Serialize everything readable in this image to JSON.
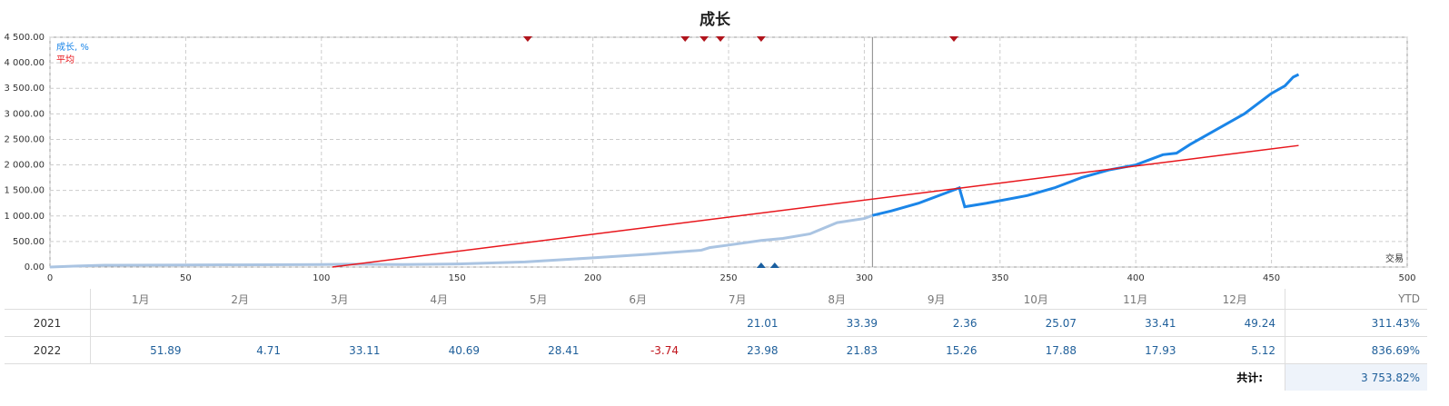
{
  "chart_data": {
    "type": "line",
    "title": "成长",
    "x_label": "交易",
    "xlim": [
      0,
      500
    ],
    "xticks": [
      0,
      50,
      100,
      150,
      200,
      250,
      300,
      350,
      400,
      450,
      500
    ],
    "ylim": [
      0,
      4500
    ],
    "yticks": [
      {
        "value": 0,
        "label": "0.00"
      },
      {
        "value": 500,
        "label": "500.00"
      },
      {
        "value": 1000,
        "label": "1 000.00"
      },
      {
        "value": 1500,
        "label": "1 500.00"
      },
      {
        "value": 2000,
        "label": "2 000.00"
      },
      {
        "value": 2500,
        "label": "2 500.00"
      },
      {
        "value": 3000,
        "label": "3 000.00"
      },
      {
        "value": 3500,
        "label": "3 500.00"
      },
      {
        "value": 4000,
        "label": "4 000.00"
      },
      {
        "value": 4500,
        "label": "4 500.00"
      }
    ],
    "grid": true,
    "cursor_x": 303,
    "past_color": "#aac4e2",
    "series": [
      {
        "name": "成长, %",
        "color": "#1a85e8",
        "x": [
          0,
          10,
          20,
          50,
          100,
          110,
          130,
          150,
          175,
          200,
          220,
          240,
          243,
          250,
          262,
          270,
          280,
          290,
          300,
          303,
          310,
          320,
          330,
          335,
          337,
          345,
          360,
          370,
          380,
          390,
          400,
          410,
          415,
          420,
          430,
          440,
          450,
          455,
          458,
          460
        ],
        "values": [
          0,
          20,
          35,
          40,
          50,
          55,
          50,
          60,
          100,
          180,
          250,
          330,
          380,
          430,
          520,
          560,
          650,
          870,
          950,
          1010,
          1100,
          1250,
          1450,
          1550,
          1180,
          1250,
          1400,
          1550,
          1750,
          1900,
          2000,
          2200,
          2230,
          2400,
          2700,
          3000,
          3400,
          3550,
          3720,
          3770
        ]
      },
      {
        "name": "平均",
        "color": "#e8161c",
        "x": [
          104,
          460
        ],
        "values": [
          0,
          2380
        ]
      }
    ],
    "top_markers_x": [
      176,
      234,
      241,
      247,
      262,
      333
    ],
    "top_marker_color": "#b0141c",
    "bottom_markers_x": [
      262,
      267
    ],
    "bottom_marker_color": "#1a5fa0"
  },
  "table": {
    "header": [
      "1月",
      "2月",
      "3月",
      "4月",
      "5月",
      "6月",
      "7月",
      "8月",
      "9月",
      "10月",
      "11月",
      "12月",
      "YTD"
    ],
    "rows": [
      {
        "year": "2021",
        "values": [
          null,
          null,
          null,
          null,
          null,
          null,
          21.01,
          33.39,
          2.36,
          25.07,
          33.41,
          49.24
        ],
        "ytd": "311.43%"
      },
      {
        "year": "2022",
        "values": [
          51.89,
          4.71,
          33.11,
          40.69,
          28.41,
          -3.74,
          23.98,
          21.83,
          15.26,
          17.88,
          17.93,
          5.12
        ],
        "ytd": "836.69%"
      }
    ],
    "total_label": "共计:",
    "total": "3 753.82%"
  }
}
